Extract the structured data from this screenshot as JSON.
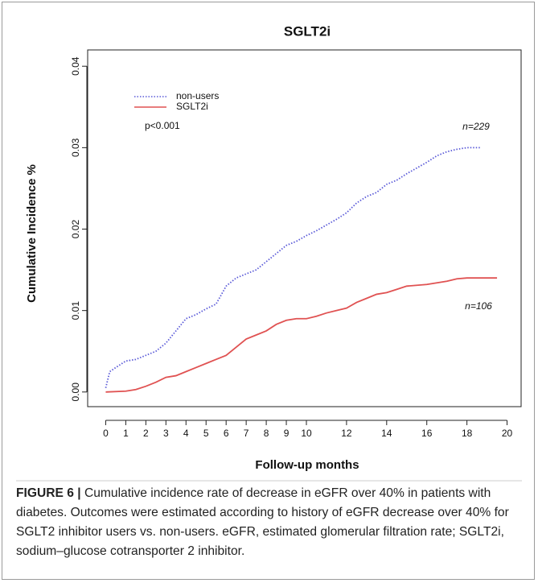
{
  "chart_data": {
    "type": "line",
    "title": "SGLT2i",
    "xlabel": "Follow-up months",
    "ylabel": "Cumulative Incidence %",
    "xlim": [
      -0.9,
      20.7
    ],
    "ylim": [
      -0.0018,
      0.042
    ],
    "xticks": [
      0,
      1,
      2,
      3,
      4,
      5,
      6,
      7,
      8,
      9,
      10,
      12,
      14,
      16,
      18,
      20
    ],
    "yticks": [
      {
        "value": 0,
        "label": "0.00"
      },
      {
        "value": 0.01,
        "label": "0.01"
      },
      {
        "value": 0.02,
        "label": "0.02"
      },
      {
        "value": 0.03,
        "label": "0.03"
      },
      {
        "value": 0.04,
        "label": "0.04"
      }
    ],
    "series": [
      {
        "name": "non-users",
        "color": "#5a5ad8",
        "dash": "dotted",
        "x": [
          0,
          0.2,
          0.5,
          1,
          1.5,
          2,
          2.5,
          3,
          3.5,
          4,
          4.5,
          5,
          5.5,
          6,
          6.5,
          7,
          7.5,
          8,
          8.5,
          9,
          9.5,
          10,
          10.5,
          11,
          11.5,
          12,
          12.5,
          13,
          13.5,
          14,
          14.5,
          15,
          15.5,
          16,
          16.5,
          17,
          17.5,
          18,
          18.7
        ],
        "values": [
          0.0005,
          0.0025,
          0.003,
          0.0038,
          0.004,
          0.0045,
          0.005,
          0.006,
          0.0075,
          0.009,
          0.0095,
          0.0102,
          0.0108,
          0.013,
          0.014,
          0.0145,
          0.015,
          0.016,
          0.017,
          0.018,
          0.0185,
          0.0192,
          0.0198,
          0.0205,
          0.0212,
          0.022,
          0.0232,
          0.024,
          0.0245,
          0.0255,
          0.026,
          0.0268,
          0.0275,
          0.0282,
          0.029,
          0.0295,
          0.0298,
          0.03,
          0.03
        ]
      },
      {
        "name": "SGLT2i",
        "color": "#e05252",
        "dash": "solid",
        "x": [
          0,
          1,
          1.5,
          2,
          2.5,
          3,
          3.5,
          4,
          4.5,
          5,
          5.5,
          6,
          6.5,
          7,
          7.5,
          8,
          8.5,
          9,
          9.5,
          10,
          10.5,
          11,
          11.5,
          12,
          12.5,
          13,
          13.5,
          14,
          14.5,
          15,
          16,
          17,
          17.5,
          18,
          19.5
        ],
        "values": [
          0,
          0.0001,
          0.0003,
          0.0007,
          0.0012,
          0.0018,
          0.002,
          0.0025,
          0.003,
          0.0035,
          0.004,
          0.0045,
          0.0055,
          0.0065,
          0.007,
          0.0075,
          0.0083,
          0.0088,
          0.009,
          0.009,
          0.0093,
          0.0097,
          0.01,
          0.0103,
          0.011,
          0.0115,
          0.012,
          0.0122,
          0.0126,
          0.013,
          0.0132,
          0.0136,
          0.0139,
          0.014,
          0.014
        ]
      }
    ],
    "annotations": [
      "p<0.001",
      "n=229",
      "n=106"
    ]
  },
  "caption": {
    "label": "FIGURE 6 |",
    "text": "Cumulative incidence rate of decrease in eGFR over 40% in patients with diabetes. Outcomes were estimated according to history of eGFR decrease over 40% for SGLT2 inhibitor users vs. non-users. eGFR, estimated glomerular filtration rate; SGLT2i, sodium–glucose cotransporter 2 inhibitor."
  }
}
